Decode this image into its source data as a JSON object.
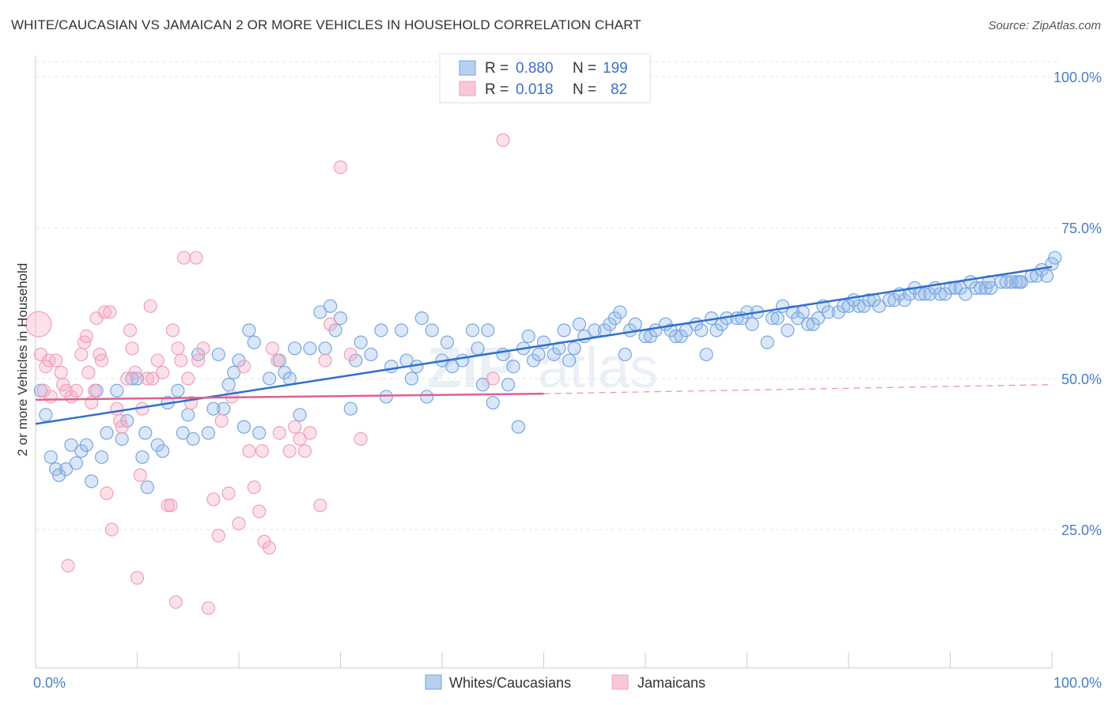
{
  "header": {
    "title": "WHITE/CAUCASIAN VS JAMAICAN 2 OR MORE VEHICLES IN HOUSEHOLD CORRELATION CHART",
    "source": "Source: ZipAtlas.com"
  },
  "legend_box": {
    "rows": [
      {
        "r_label": "R =",
        "r_value": "0.880",
        "n_label": "N =",
        "n_value": "199",
        "color": "#6fa0e0"
      },
      {
        "r_label": "R =",
        "r_value": "0.018",
        "n_label": "N =",
        "n_value": "82",
        "color": "#f0a0b8"
      }
    ]
  },
  "watermark": {
    "zip": "ZIP",
    "atlas": "atlas"
  },
  "chart_data": {
    "type": "scatter",
    "xlabel": "",
    "ylabel": "2 or more Vehicles in Household",
    "x_range": [
      0,
      100
    ],
    "y_range": [
      5,
      105
    ],
    "x_tick_labels": [
      "0.0%",
      "100.0%"
    ],
    "y_ticks": [
      25,
      50,
      75,
      100
    ],
    "y_tick_labels": [
      "25.0%",
      "50.0%",
      "75.0%",
      "100.0%"
    ],
    "grid": "horizontal dashed",
    "legend_bottom": [
      "Whites/Caucasians",
      "Jamaicans"
    ],
    "series": [
      {
        "name": "Whites/Caucasians",
        "color": "#6fa0e0",
        "trend": {
          "x0": 0,
          "y0": 42.5,
          "x1": 100,
          "y1": 68.5
        },
        "points": [
          [
            0.5,
            48
          ],
          [
            1,
            44
          ],
          [
            1.5,
            37
          ],
          [
            2,
            35
          ],
          [
            2.3,
            34
          ],
          [
            3,
            35
          ],
          [
            3.5,
            39
          ],
          [
            4,
            36
          ],
          [
            4.5,
            38
          ],
          [
            5,
            39
          ],
          [
            5.5,
            33
          ],
          [
            6,
            48
          ],
          [
            6.5,
            37
          ],
          [
            7,
            41
          ],
          [
            8,
            48
          ],
          [
            8.5,
            40
          ],
          [
            9,
            43
          ],
          [
            9.5,
            50
          ],
          [
            10,
            50
          ],
          [
            10.5,
            37
          ],
          [
            10.8,
            41
          ],
          [
            11,
            32
          ],
          [
            12,
            39
          ],
          [
            12.5,
            38
          ],
          [
            13,
            46
          ],
          [
            14,
            48
          ],
          [
            14.5,
            41
          ],
          [
            15,
            44
          ],
          [
            15.5,
            40
          ],
          [
            16,
            54
          ],
          [
            17,
            41
          ],
          [
            17.5,
            45
          ],
          [
            18,
            54
          ],
          [
            18.5,
            45
          ],
          [
            19,
            49
          ],
          [
            19.5,
            51
          ],
          [
            20,
            53
          ],
          [
            20.5,
            42
          ],
          [
            21,
            58
          ],
          [
            21.5,
            56
          ],
          [
            22,
            41
          ],
          [
            23,
            50
          ],
          [
            24,
            53
          ],
          [
            24.5,
            51
          ],
          [
            25,
            50
          ],
          [
            25.5,
            55
          ],
          [
            26,
            44
          ],
          [
            27,
            55
          ],
          [
            28,
            61
          ],
          [
            28.5,
            55
          ],
          [
            29,
            62
          ],
          [
            29.5,
            58
          ],
          [
            30,
            60
          ],
          [
            31,
            45
          ],
          [
            31.5,
            53
          ],
          [
            32,
            56
          ],
          [
            33,
            54
          ],
          [
            34,
            58
          ],
          [
            34.5,
            47
          ],
          [
            35,
            52
          ],
          [
            36,
            58
          ],
          [
            36.5,
            53
          ],
          [
            37,
            50
          ],
          [
            37.5,
            52
          ],
          [
            38,
            60
          ],
          [
            38.5,
            47
          ],
          [
            39,
            58
          ],
          [
            40,
            53
          ],
          [
            40.5,
            56
          ],
          [
            41,
            52
          ],
          [
            42,
            53
          ],
          [
            43,
            58
          ],
          [
            43.5,
            55
          ],
          [
            44,
            49
          ],
          [
            44.5,
            58
          ],
          [
            45,
            46
          ],
          [
            46,
            54
          ],
          [
            46.5,
            49
          ],
          [
            47,
            52
          ],
          [
            47.5,
            42
          ],
          [
            48,
            55
          ],
          [
            48.5,
            57
          ],
          [
            49,
            53
          ],
          [
            49.5,
            54
          ],
          [
            50,
            56
          ],
          [
            51,
            54
          ],
          [
            51.5,
            55
          ],
          [
            52,
            58
          ],
          [
            52.5,
            53
          ],
          [
            53,
            55
          ],
          [
            53.5,
            59
          ],
          [
            54,
            57
          ],
          [
            55,
            58
          ],
          [
            56,
            58
          ],
          [
            56.5,
            59
          ],
          [
            57,
            60
          ],
          [
            57.5,
            61
          ],
          [
            58,
            54
          ],
          [
            58.5,
            58
          ],
          [
            59,
            59
          ],
          [
            60,
            57
          ],
          [
            60.5,
            57
          ],
          [
            61,
            58
          ],
          [
            62,
            59
          ],
          [
            62.5,
            58
          ],
          [
            63,
            57
          ],
          [
            63.5,
            57
          ],
          [
            64,
            58
          ],
          [
            65,
            59
          ],
          [
            65.5,
            58
          ],
          [
            66,
            54
          ],
          [
            66.5,
            60
          ],
          [
            67,
            58
          ],
          [
            67.5,
            59
          ],
          [
            68,
            60
          ],
          [
            69,
            60
          ],
          [
            69.5,
            60
          ],
          [
            70,
            61
          ],
          [
            70.5,
            59
          ],
          [
            71,
            61
          ],
          [
            72,
            56
          ],
          [
            72.5,
            60
          ],
          [
            73,
            60
          ],
          [
            73.5,
            62
          ],
          [
            74,
            58
          ],
          [
            75,
            60
          ],
          [
            75.5,
            61
          ],
          [
            76,
            59
          ],
          [
            76.5,
            59
          ],
          [
            77,
            60
          ],
          [
            77.5,
            62
          ],
          [
            78,
            61
          ],
          [
            79,
            61
          ],
          [
            79.5,
            62
          ],
          [
            80,
            62
          ],
          [
            80.5,
            63
          ],
          [
            81,
            62
          ],
          [
            81.5,
            62
          ],
          [
            82,
            63
          ],
          [
            82.5,
            63
          ],
          [
            83,
            62
          ],
          [
            84,
            63
          ],
          [
            84.5,
            63
          ],
          [
            85,
            64
          ],
          [
            85.5,
            63
          ],
          [
            86,
            64
          ],
          [
            87,
            64
          ],
          [
            87.5,
            64
          ],
          [
            88,
            64
          ],
          [
            88.5,
            65
          ],
          [
            89,
            64
          ],
          [
            89.5,
            64
          ],
          [
            90,
            65
          ],
          [
            90.5,
            65
          ],
          [
            91,
            65
          ],
          [
            92,
            66
          ],
          [
            92.5,
            65
          ],
          [
            93,
            65
          ],
          [
            93.5,
            65
          ],
          [
            94,
            65
          ],
          [
            95,
            66
          ],
          [
            95.5,
            66
          ],
          [
            96,
            66
          ],
          [
            96.5,
            66
          ],
          [
            97,
            66
          ],
          [
            98,
            67
          ],
          [
            98.5,
            67
          ],
          [
            99,
            68
          ],
          [
            99.5,
            67
          ],
          [
            100,
            69
          ],
          [
            100.3,
            70
          ],
          [
            74.5,
            61
          ],
          [
            86.5,
            65
          ],
          [
            91.5,
            64
          ],
          [
            93.8,
            66
          ],
          [
            96.8,
            66
          ]
        ]
      },
      {
        "name": "Jamaicans",
        "color": "#f0a0b8",
        "trend": {
          "x0": 0,
          "y0": 46.5,
          "x1": 50,
          "y1": 47.5
        },
        "trend_dashed": {
          "x0": 50,
          "y0": 47.5,
          "x1": 100,
          "y1": 49
        },
        "points": [
          [
            0.3,
            59
          ],
          [
            0.5,
            54
          ],
          [
            0.8,
            48
          ],
          [
            1,
            52
          ],
          [
            1.3,
            53
          ],
          [
            1.5,
            47
          ],
          [
            2,
            53
          ],
          [
            2.5,
            51
          ],
          [
            2.7,
            49
          ],
          [
            3,
            48
          ],
          [
            3.2,
            19
          ],
          [
            3.5,
            47
          ],
          [
            4,
            48
          ],
          [
            4.5,
            54
          ],
          [
            4.8,
            56
          ],
          [
            5,
            57
          ],
          [
            5.2,
            51
          ],
          [
            5.5,
            46
          ],
          [
            5.8,
            48
          ],
          [
            6,
            60
          ],
          [
            6.3,
            54
          ],
          [
            6.5,
            53
          ],
          [
            6.8,
            61
          ],
          [
            7,
            31
          ],
          [
            7.3,
            61
          ],
          [
            7.5,
            25
          ],
          [
            8,
            45
          ],
          [
            8.3,
            43
          ],
          [
            8.5,
            42
          ],
          [
            9,
            50
          ],
          [
            9.3,
            58
          ],
          [
            9.5,
            55
          ],
          [
            9.8,
            51
          ],
          [
            10,
            17
          ],
          [
            10.3,
            34
          ],
          [
            10.5,
            45
          ],
          [
            11,
            50
          ],
          [
            11.3,
            62
          ],
          [
            11.5,
            50
          ],
          [
            12,
            53
          ],
          [
            12.5,
            51
          ],
          [
            13,
            29
          ],
          [
            13.3,
            29
          ],
          [
            13.5,
            58
          ],
          [
            13.8,
            13
          ],
          [
            14,
            55
          ],
          [
            14.3,
            53
          ],
          [
            14.6,
            70
          ],
          [
            15,
            50
          ],
          [
            15.3,
            46
          ],
          [
            15.8,
            70
          ],
          [
            16,
            53
          ],
          [
            16.5,
            55
          ],
          [
            17,
            12
          ],
          [
            17.5,
            30
          ],
          [
            18,
            24
          ],
          [
            18.3,
            43
          ],
          [
            19,
            31
          ],
          [
            19.3,
            47
          ],
          [
            20,
            26
          ],
          [
            20.5,
            52
          ],
          [
            21,
            38
          ],
          [
            21.5,
            32
          ],
          [
            22,
            28
          ],
          [
            22.3,
            38
          ],
          [
            22.5,
            23
          ],
          [
            23,
            22
          ],
          [
            23.3,
            55
          ],
          [
            23.8,
            53
          ],
          [
            24,
            41
          ],
          [
            25,
            38
          ],
          [
            25.5,
            42
          ],
          [
            26,
            40
          ],
          [
            26.5,
            38
          ],
          [
            27,
            41
          ],
          [
            28,
            29
          ],
          [
            28.5,
            53
          ],
          [
            29,
            59
          ],
          [
            30,
            85
          ],
          [
            31,
            54
          ],
          [
            32,
            40
          ],
          [
            45,
            50
          ],
          [
            46,
            89.5
          ]
        ]
      }
    ]
  }
}
